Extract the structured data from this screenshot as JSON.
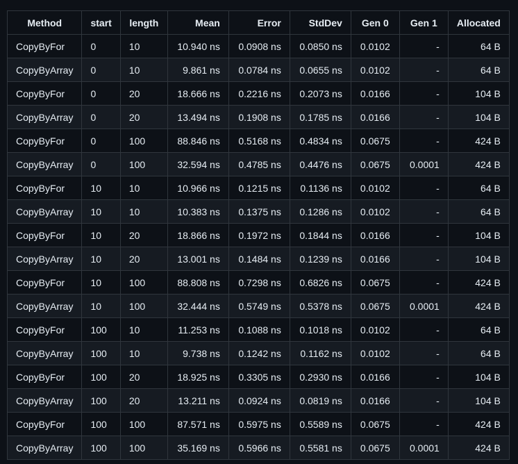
{
  "table": {
    "columns": [
      "Method",
      "start",
      "length",
      "Mean",
      "Error",
      "StdDev",
      "Gen 0",
      "Gen 1",
      "Allocated"
    ],
    "rows": [
      [
        "CopyByFor",
        "0",
        "10",
        "10.940 ns",
        "0.0908 ns",
        "0.0850 ns",
        "0.0102",
        "-",
        "64 B"
      ],
      [
        "CopyByArray",
        "0",
        "10",
        "9.861 ns",
        "0.0784 ns",
        "0.0655 ns",
        "0.0102",
        "-",
        "64 B"
      ],
      [
        "CopyByFor",
        "0",
        "20",
        "18.666 ns",
        "0.2216 ns",
        "0.2073 ns",
        "0.0166",
        "-",
        "104 B"
      ],
      [
        "CopyByArray",
        "0",
        "20",
        "13.494 ns",
        "0.1908 ns",
        "0.1785 ns",
        "0.0166",
        "-",
        "104 B"
      ],
      [
        "CopyByFor",
        "0",
        "100",
        "88.846 ns",
        "0.5168 ns",
        "0.4834 ns",
        "0.0675",
        "-",
        "424 B"
      ],
      [
        "CopyByArray",
        "0",
        "100",
        "32.594 ns",
        "0.4785 ns",
        "0.4476 ns",
        "0.0675",
        "0.0001",
        "424 B"
      ],
      [
        "CopyByFor",
        "10",
        "10",
        "10.966 ns",
        "0.1215 ns",
        "0.1136 ns",
        "0.0102",
        "-",
        "64 B"
      ],
      [
        "CopyByArray",
        "10",
        "10",
        "10.383 ns",
        "0.1375 ns",
        "0.1286 ns",
        "0.0102",
        "-",
        "64 B"
      ],
      [
        "CopyByFor",
        "10",
        "20",
        "18.866 ns",
        "0.1972 ns",
        "0.1844 ns",
        "0.0166",
        "-",
        "104 B"
      ],
      [
        "CopyByArray",
        "10",
        "20",
        "13.001 ns",
        "0.1484 ns",
        "0.1239 ns",
        "0.0166",
        "-",
        "104 B"
      ],
      [
        "CopyByFor",
        "10",
        "100",
        "88.808 ns",
        "0.7298 ns",
        "0.6826 ns",
        "0.0675",
        "-",
        "424 B"
      ],
      [
        "CopyByArray",
        "10",
        "100",
        "32.444 ns",
        "0.5749 ns",
        "0.5378 ns",
        "0.0675",
        "0.0001",
        "424 B"
      ],
      [
        "CopyByFor",
        "100",
        "10",
        "11.253 ns",
        "0.1088 ns",
        "0.1018 ns",
        "0.0102",
        "-",
        "64 B"
      ],
      [
        "CopyByArray",
        "100",
        "10",
        "9.738 ns",
        "0.1242 ns",
        "0.1162 ns",
        "0.0102",
        "-",
        "64 B"
      ],
      [
        "CopyByFor",
        "100",
        "20",
        "18.925 ns",
        "0.3305 ns",
        "0.2930 ns",
        "0.0166",
        "-",
        "104 B"
      ],
      [
        "CopyByArray",
        "100",
        "20",
        "13.211 ns",
        "0.0924 ns",
        "0.0819 ns",
        "0.0166",
        "-",
        "104 B"
      ],
      [
        "CopyByFor",
        "100",
        "100",
        "87.571 ns",
        "0.5975 ns",
        "0.5589 ns",
        "0.0675",
        "-",
        "424 B"
      ],
      [
        "CopyByArray",
        "100",
        "100",
        "35.169 ns",
        "0.5966 ns",
        "0.5581 ns",
        "0.0675",
        "0.0001",
        "424 B"
      ]
    ]
  },
  "theme": {
    "background": "#0d1117",
    "row_alt": "#161b22",
    "border": "#30363d",
    "text": "#e6edf3"
  }
}
